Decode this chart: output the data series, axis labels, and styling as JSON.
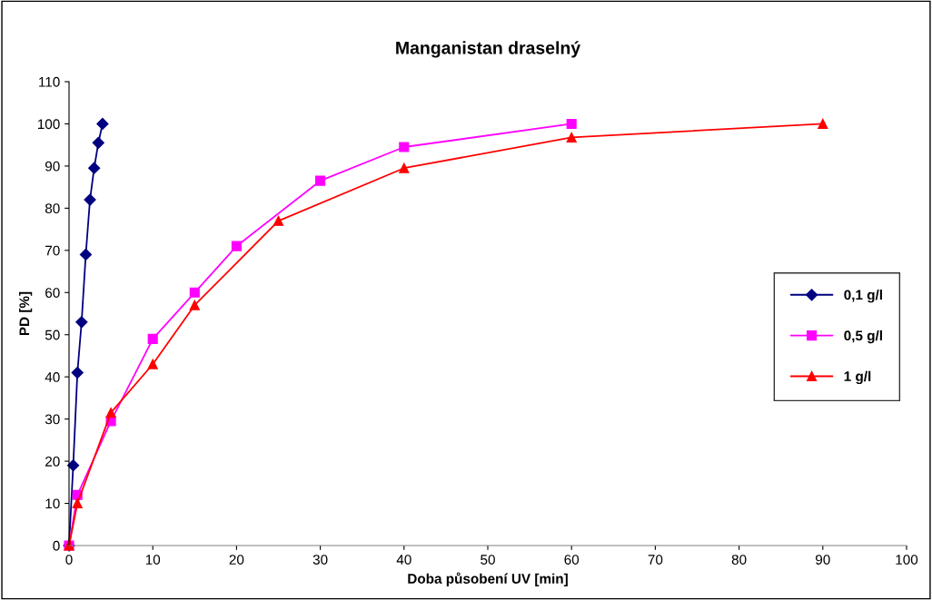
{
  "chart_data": {
    "type": "line",
    "title": "Manganistan draselný",
    "xlabel": "Doba působení UV [min]",
    "ylabel": "PD [%]",
    "xlim": [
      0,
      100
    ],
    "xticks": [
      0,
      10,
      20,
      30,
      40,
      50,
      60,
      70,
      80,
      90,
      100
    ],
    "ylim": [
      0,
      110
    ],
    "yticks": [
      0,
      10,
      20,
      30,
      40,
      50,
      60,
      70,
      80,
      90,
      100,
      110
    ],
    "grid": false,
    "legend": "right",
    "line_style": "solid",
    "series": [
      {
        "name": "0,1 g/l",
        "color": "#000080",
        "marker": "diamond",
        "x": [
          0,
          0.5,
          1,
          1.5,
          2,
          2.5,
          3,
          3.5,
          4
        ],
        "values": [
          0,
          19,
          41,
          53,
          69,
          82,
          89.5,
          95.5,
          100
        ]
      },
      {
        "name": "0,5 g/l",
        "color": "#ff00ff",
        "marker": "square",
        "x": [
          0,
          1,
          5,
          10,
          15,
          20,
          30,
          40,
          60
        ],
        "values": [
          0,
          12,
          29.5,
          49,
          60,
          71,
          86.5,
          94.5,
          100
        ]
      },
      {
        "name": "1 g/l",
        "color": "#ff0000",
        "marker": "triangle",
        "x": [
          0,
          1,
          5,
          10,
          15,
          25,
          40,
          60,
          90
        ],
        "values": [
          0,
          10,
          31.5,
          43,
          57,
          77,
          89.5,
          96.8,
          100
        ]
      }
    ]
  }
}
